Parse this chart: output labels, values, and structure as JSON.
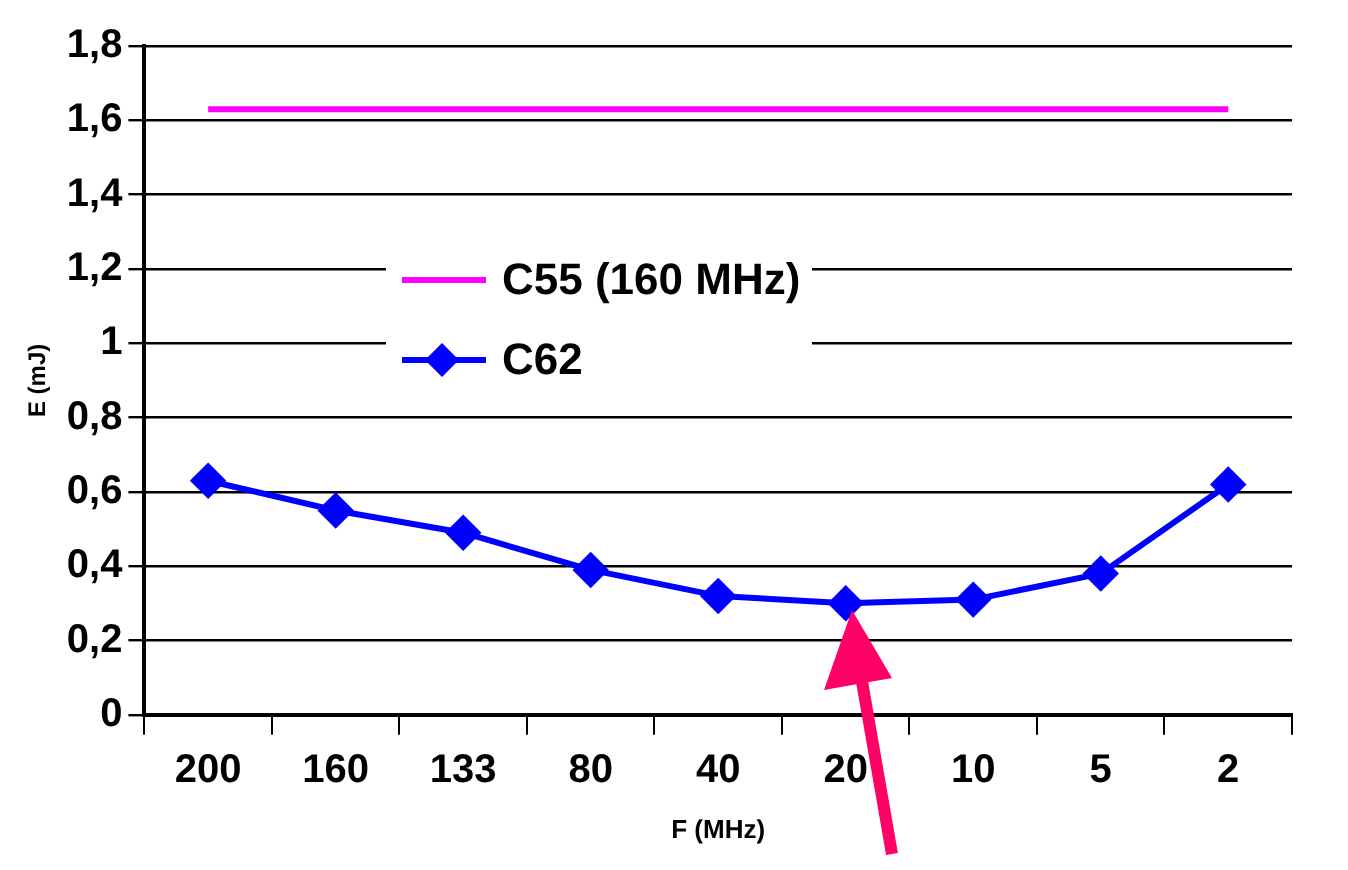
{
  "chart_data": {
    "type": "line",
    "xlabel": "F (MHz)",
    "ylabel": "E (mJ)",
    "categories": [
      "200",
      "160",
      "133",
      "80",
      "40",
      "20",
      "10",
      "5",
      "2"
    ],
    "series": [
      {
        "name": "C55 (160 MHz)",
        "color": "#ff00ff",
        "marker": "none",
        "values": [
          1.63,
          1.63,
          1.63,
          1.63,
          1.63,
          1.63,
          1.63,
          1.63,
          1.63
        ]
      },
      {
        "name": "C62",
        "color": "#0000ff",
        "marker": "diamond",
        "values": [
          0.63,
          0.55,
          0.49,
          0.39,
          0.32,
          0.3,
          0.31,
          0.38,
          0.62
        ]
      }
    ],
    "ylim": [
      0,
      1.8
    ],
    "yticks": [
      {
        "value": 0,
        "label": "0"
      },
      {
        "value": 0.2,
        "label": "0,2"
      },
      {
        "value": 0.4,
        "label": "0,4"
      },
      {
        "value": 0.6,
        "label": "0,6"
      },
      {
        "value": 0.8,
        "label": "0,8"
      },
      {
        "value": 1,
        "label": "1"
      },
      {
        "value": 1.2,
        "label": "1,2"
      },
      {
        "value": 1.4,
        "label": "1,4"
      },
      {
        "value": 1.6,
        "label": "1,6"
      },
      {
        "value": 1.8,
        "label": "1,8"
      }
    ],
    "grid": "y",
    "legend": "center"
  }
}
